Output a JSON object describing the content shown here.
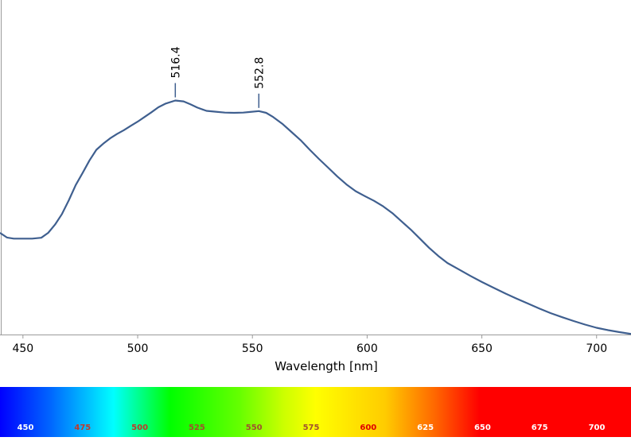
{
  "chart_data": {
    "type": "line",
    "xlabel": "Wavelength [nm]",
    "ylabel": "",
    "xlim": [
      440,
      715
    ],
    "ylim": [
      0,
      1
    ],
    "grid": false,
    "x_ticks": [
      450,
      500,
      550,
      600,
      650,
      700
    ],
    "line_color": "#3f5f8f",
    "series": [
      {
        "x": [
          440,
          443,
          446,
          450,
          454,
          458,
          461,
          464,
          467,
          470,
          473,
          476,
          479,
          482,
          485,
          488,
          491,
          494,
          497,
          500,
          503,
          506,
          509,
          512,
          516.4,
          520,
          523,
          526,
          530,
          534,
          538,
          542,
          546,
          549,
          552.8,
          556,
          559,
          563,
          567,
          571,
          575,
          579,
          583,
          587,
          591,
          595,
          599,
          603,
          607,
          611,
          615,
          619,
          623,
          627,
          631,
          635,
          640,
          645,
          650,
          655,
          660,
          665,
          670,
          675,
          680,
          685,
          690,
          695,
          700,
          705,
          710,
          715
        ],
        "y": [
          0.347,
          0.331,
          0.327,
          0.327,
          0.327,
          0.33,
          0.347,
          0.375,
          0.411,
          0.458,
          0.51,
          0.551,
          0.594,
          0.63,
          0.651,
          0.669,
          0.684,
          0.697,
          0.712,
          0.726,
          0.742,
          0.758,
          0.775,
          0.787,
          0.798,
          0.795,
          0.785,
          0.774,
          0.763,
          0.76,
          0.757,
          0.756,
          0.757,
          0.759,
          0.762,
          0.756,
          0.742,
          0.719,
          0.691,
          0.663,
          0.63,
          0.599,
          0.569,
          0.539,
          0.512,
          0.489,
          0.472,
          0.456,
          0.437,
          0.414,
          0.386,
          0.358,
          0.327,
          0.296,
          0.268,
          0.244,
          0.222,
          0.2,
          0.179,
          0.16,
          0.141,
          0.123,
          0.106,
          0.089,
          0.073,
          0.059,
          0.046,
          0.034,
          0.023,
          0.015,
          0.008,
          0.002
        ]
      }
    ],
    "peaks": [
      {
        "x": 516.4,
        "label": "516.4"
      },
      {
        "x": 552.8,
        "label": "552.8"
      }
    ]
  },
  "colorbar": {
    "labels": [
      "450",
      "475",
      "500",
      "525",
      "550",
      "575",
      "600",
      "625",
      "650",
      "675",
      "700"
    ],
    "label_colors": [
      "#ffffff",
      "#c0392b",
      "#c0392b",
      "#a0522d",
      "#a0522d",
      "#a0522d",
      "#e00000",
      "#ffffff",
      "#ffffff",
      "#ffffff",
      "#ffffff"
    ]
  }
}
